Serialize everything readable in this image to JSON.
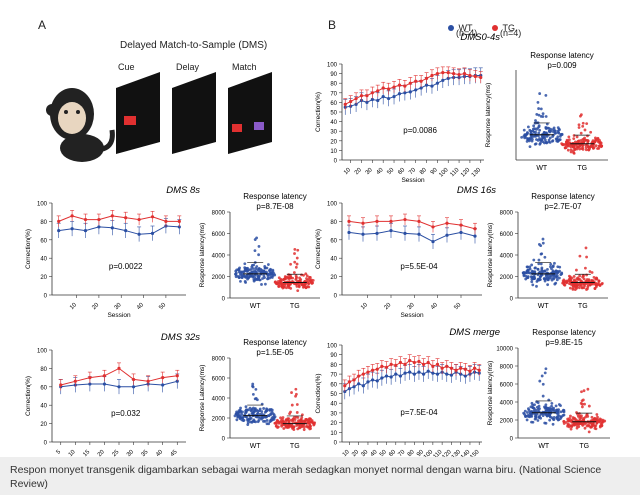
{
  "panel_a_label": "A",
  "panel_b_label": "B",
  "dms_task": {
    "title": "Delayed Match-to-Sample (DMS)",
    "stages": [
      "Cue",
      "Delay",
      "Match"
    ]
  },
  "legend": {
    "wt": {
      "name": "WT",
      "n": "(n=4)",
      "color": "#2b4fa3"
    },
    "tg": {
      "name": "TG",
      "n": "(n=4)",
      "color": "#e03030"
    }
  },
  "caption": "Respon monyet transgenik digambarkan sebagai warna merah sedagkan monyet normal dengan warna biru. (National Science Review)",
  "chart_data": [
    {
      "type": "line",
      "title": "DMS0-4s",
      "xlabel": "Session",
      "ylabel": "Correction(%)",
      "ylim": [
        0,
        100
      ],
      "yticks": [
        "0",
        "10",
        "20",
        "30",
        "40",
        "50",
        "60",
        "70",
        "80",
        "90",
        "100"
      ],
      "xticks": [
        "10",
        "20",
        "30",
        "40",
        "50",
        "60",
        "70",
        "80",
        "90",
        "100",
        "110",
        "120",
        "130"
      ],
      "x": [
        5,
        10,
        15,
        20,
        25,
        30,
        35,
        40,
        45,
        50,
        55,
        60,
        65,
        70,
        75,
        80,
        85,
        90,
        95,
        100,
        105,
        110,
        115,
        120,
        125,
        130
      ],
      "series": [
        {
          "name": "WT",
          "values": [
            55,
            56,
            58,
            62,
            60,
            63,
            62,
            66,
            64,
            66,
            69,
            70,
            71,
            73,
            75,
            78,
            77,
            80,
            83,
            85,
            86,
            86,
            87,
            87,
            88,
            88
          ]
        },
        {
          "name": "TG",
          "values": [
            58,
            61,
            64,
            67,
            67,
            70,
            72,
            75,
            74,
            76,
            78,
            77,
            80,
            82,
            82,
            85,
            88,
            90,
            91,
            91,
            90,
            89,
            90,
            88,
            87,
            86
          ]
        }
      ],
      "annotation": "p=0.0086"
    },
    {
      "type": "scatter",
      "title": "Response latency",
      "ylabel": "Response latency(ms)",
      "categories": [
        "WT",
        "TG"
      ],
      "annotation": "p=0.009",
      "ylim": [
        0,
        10000
      ]
    },
    {
      "type": "line",
      "title": "DMS 8s",
      "xlabel": "Session",
      "ylabel": "Correction(%)",
      "ylim": [
        0,
        100
      ],
      "yticks": [
        "0",
        "20",
        "40",
        "60",
        "80",
        "100"
      ],
      "xticks": [
        "10",
        "20",
        "30",
        "40",
        "50"
      ],
      "x": [
        2,
        8,
        14,
        20,
        26,
        32,
        38,
        44,
        50,
        56
      ],
      "series": [
        {
          "name": "WT",
          "values": [
            70,
            72,
            70,
            74,
            73,
            70,
            66,
            67,
            75,
            74
          ]
        },
        {
          "name": "TG",
          "values": [
            80,
            86,
            82,
            82,
            86,
            84,
            82,
            85,
            80,
            80
          ]
        }
      ],
      "annotation": "p=0.0022"
    },
    {
      "type": "scatter",
      "title": "Response latency",
      "ylabel": "Response latency(ms)",
      "categories": [
        "WT",
        "TG"
      ],
      "yticks": [
        "0",
        "2000",
        "4000",
        "6000",
        "8000"
      ],
      "ylim": [
        0,
        8000
      ],
      "annotation": "p=8.7E-08"
    },
    {
      "type": "line",
      "title": "DMS 16s",
      "xlabel": "Session",
      "ylabel": "Correction(%)",
      "ylim": [
        0,
        100
      ],
      "yticks": [
        "0",
        "20",
        "40",
        "60",
        "80",
        "100"
      ],
      "xticks": [
        "10",
        "20",
        "30",
        "40",
        "50"
      ],
      "x": [
        2,
        8,
        14,
        20,
        26,
        32,
        38,
        44,
        50,
        56
      ],
      "series": [
        {
          "name": "WT",
          "values": [
            68,
            66,
            67,
            70,
            67,
            66,
            58,
            65,
            68,
            64
          ]
        },
        {
          "name": "TG",
          "values": [
            80,
            78,
            80,
            80,
            82,
            80,
            74,
            78,
            76,
            72
          ]
        }
      ],
      "annotation": "p=5.5E-04"
    },
    {
      "type": "scatter",
      "title": "Response latency",
      "ylabel": "Response latency(ms)",
      "categories": [
        "WT",
        "TG"
      ],
      "yticks": [
        "0",
        "2000",
        "4000",
        "6000",
        "8000"
      ],
      "ylim": [
        0,
        8000
      ],
      "annotation": "p=2.7E-07"
    },
    {
      "type": "line",
      "title": "DMS 32s",
      "ylabel": "Correction(%)",
      "ylim": [
        0,
        100
      ],
      "yticks": [
        "0",
        "20",
        "40",
        "60",
        "80",
        "100"
      ],
      "xticks": [
        "5",
        "10",
        "15",
        "20",
        "25",
        "30",
        "35",
        "40",
        "45"
      ],
      "x": [
        5,
        10,
        15,
        20,
        25,
        30,
        35,
        40,
        45
      ],
      "series": [
        {
          "name": "WT",
          "values": [
            60,
            62,
            63,
            63,
            60,
            60,
            63,
            62,
            66
          ]
        },
        {
          "name": "TG",
          "values": [
            62,
            66,
            70,
            72,
            80,
            68,
            66,
            70,
            72
          ]
        }
      ],
      "annotation": "p=0.032"
    },
    {
      "type": "scatter",
      "title": "Response latency",
      "ylabel": "Response Latency(ms)",
      "categories": [
        "WT",
        "TG"
      ],
      "yticks": [
        "0",
        "2000",
        "4000",
        "6000",
        "8000"
      ],
      "ylim": [
        0,
        8000
      ],
      "annotation": "p=1.5E-05"
    },
    {
      "type": "line",
      "title": "DMS merge",
      "ylabel": "Correction(%)",
      "ylim": [
        0,
        100
      ],
      "yticks": [
        "0",
        "10",
        "20",
        "30",
        "40",
        "50",
        "60",
        "70",
        "80",
        "90",
        "100"
      ],
      "xticks": [
        "10",
        "20",
        "30",
        "40",
        "50",
        "60",
        "70",
        "80",
        "90",
        "100",
        "110",
        "120",
        "130",
        "140",
        "150"
      ],
      "x": [
        5,
        10,
        15,
        20,
        25,
        30,
        35,
        40,
        45,
        50,
        55,
        60,
        65,
        70,
        75,
        80,
        85,
        90,
        95,
        100,
        105,
        110,
        115,
        120,
        125,
        130,
        135,
        140,
        145,
        150
      ],
      "series": [
        {
          "name": "WT",
          "values": [
            52,
            55,
            57,
            60,
            58,
            62,
            64,
            63,
            66,
            68,
            67,
            70,
            68,
            71,
            72,
            70,
            72,
            70,
            73,
            71,
            70,
            72,
            70,
            69,
            72,
            70,
            68,
            70,
            72,
            71
          ]
        },
        {
          "name": "TG",
          "values": [
            58,
            62,
            64,
            68,
            70,
            72,
            74,
            75,
            78,
            77,
            80,
            79,
            82,
            80,
            84,
            82,
            83,
            80,
            82,
            78,
            80,
            76,
            78,
            76,
            74,
            76,
            75,
            73,
            76,
            74
          ]
        }
      ],
      "annotation": "p=7.5E-04"
    },
    {
      "type": "scatter",
      "title": "Response latency",
      "ylabel": "Response latency(ms)",
      "categories": [
        "WT",
        "TG"
      ],
      "yticks": [
        "0",
        "2000",
        "4000",
        "6000",
        "8000",
        "10000"
      ],
      "ylim": [
        0,
        10000
      ],
      "annotation": "p=9.8E-15"
    }
  ]
}
